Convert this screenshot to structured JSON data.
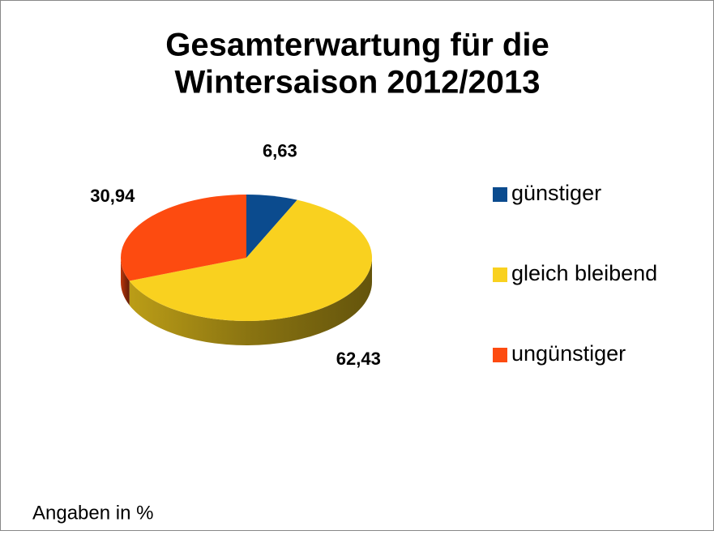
{
  "chart_data": {
    "type": "pie3d",
    "title": [
      "Gesamterwartung für die",
      "Wintersaison 2012/2013"
    ],
    "categories": [
      "günstiger",
      "gleich bleibend",
      "ungünstiger"
    ],
    "values": [
      6.63,
      62.43,
      30.94
    ],
    "value_labels": [
      "6,63",
      "62,43",
      "30,94"
    ],
    "colors": [
      "#0b4b8e",
      "#f9d11f",
      "#fd4b10"
    ],
    "legend": "right",
    "note": "Angaben in %"
  }
}
